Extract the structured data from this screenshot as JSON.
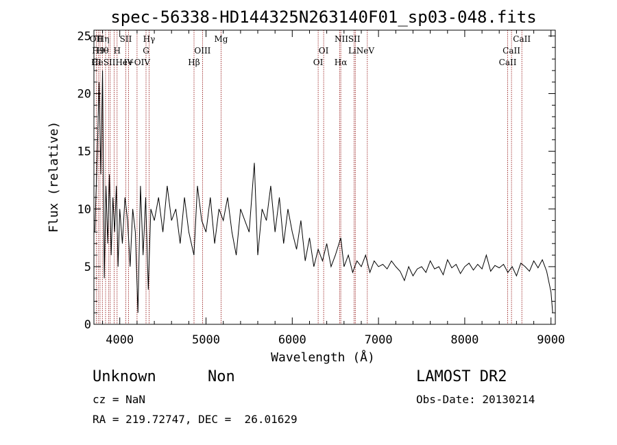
{
  "chart_data": {
    "type": "line",
    "title": "spec-56338-HD144325N263140F01_sp03-048.fits",
    "xlabel": "Wavelength (Å)",
    "ylabel": "Flux (relative)",
    "xlim": [
      3700,
      9050
    ],
    "ylim": [
      0,
      25.5
    ],
    "xticks": [
      4000,
      5000,
      6000,
      7000,
      8000,
      9000
    ],
    "yticks": [
      0,
      5,
      10,
      15,
      20,
      25
    ],
    "grid": false,
    "line_color": "#000000",
    "marker_color": "#8b0000",
    "series": [
      {
        "x": [
          3710,
          3740,
          3760,
          3780,
          3800,
          3820,
          3840,
          3860,
          3880,
          3900,
          3920,
          3940,
          3960,
          3980,
          4000,
          4030,
          4060,
          4090,
          4120,
          4150,
          4180,
          4210,
          4240,
          4270,
          4300,
          4330,
          4360,
          4400,
          4450,
          4500,
          4550,
          4600,
          4650,
          4700,
          4750,
          4800,
          4860,
          4900,
          4950,
          5000,
          5050,
          5100,
          5150,
          5200,
          5250,
          5300,
          5350,
          5400,
          5450,
          5500,
          5560,
          5600,
          5650,
          5700,
          5750,
          5800,
          5850,
          5900,
          5950,
          6000,
          6050,
          6100,
          6150,
          6200,
          6250,
          6300,
          6350,
          6400,
          6450,
          6500,
          6563,
          6600,
          6650,
          6700,
          6750,
          6800,
          6850,
          6900,
          6950,
          7000,
          7050,
          7100,
          7150,
          7200,
          7250,
          7300,
          7350,
          7400,
          7450,
          7500,
          7550,
          7600,
          7650,
          7700,
          7750,
          7800,
          7850,
          7900,
          7950,
          8000,
          8050,
          8100,
          8150,
          8200,
          8250,
          8300,
          8350,
          8400,
          8450,
          8500,
          8550,
          8600,
          8650,
          8700,
          8750,
          8800,
          8850,
          8900,
          8950,
          9000,
          9020
        ],
        "y": [
          8,
          15,
          21,
          13,
          22,
          4,
          12,
          7,
          13,
          6,
          11,
          8,
          12,
          5,
          10,
          7,
          11,
          9,
          5,
          10,
          8,
          1,
          12,
          6,
          11,
          3,
          10,
          9,
          11,
          8,
          12,
          9,
          10,
          7,
          11,
          8,
          6,
          12,
          9,
          8,
          11,
          7,
          10,
          9,
          11,
          8,
          6,
          10,
          9,
          8,
          14,
          6,
          10,
          9,
          12,
          8,
          11,
          7,
          10,
          8,
          6.5,
          9,
          5.5,
          7.5,
          5,
          6.5,
          5.5,
          7,
          5,
          6,
          7.5,
          5,
          6,
          4.5,
          5.5,
          5,
          6,
          4.5,
          5.5,
          5,
          5.2,
          4.8,
          5.5,
          5,
          4.6,
          3.8,
          5,
          4.2,
          4.8,
          5,
          4.5,
          5.5,
          4.8,
          5,
          4.3,
          5.6,
          4.9,
          5.2,
          4.4,
          5,
          5.3,
          4.7,
          5.2,
          4.8,
          6,
          4.6,
          5.1,
          4.9,
          5.2,
          4.5,
          5,
          4.2,
          5.3,
          5,
          4.6,
          5.5,
          4.9,
          5.6,
          4.6,
          2.8,
          1
        ]
      }
    ],
    "lines": [
      {
        "x": 3727,
        "labels": [
          "OII"
        ]
      },
      {
        "x": 3750,
        "labels": [
          "H9"
        ]
      },
      {
        "x": 3771,
        "labels": [
          "H8"
        ]
      },
      {
        "x": 3798,
        "labels": [
          "Hη"
        ]
      },
      {
        "x": 3835,
        "labels": [
          "Hθ"
        ]
      },
      {
        "x": 3869,
        "labels": [
          "HeI"
        ]
      },
      {
        "x": 3889,
        "labels": [
          "Hζ"
        ]
      },
      {
        "x": 3934,
        "labels": [
          "K"
        ]
      },
      {
        "x": 3969,
        "labels": [
          "H"
        ]
      },
      {
        "x": 4070,
        "labels": [
          "SII"
        ]
      },
      {
        "x": 4102,
        "labels": [
          "Hδ"
        ]
      },
      {
        "x": 4200,
        "labels": [
          "HeII"
        ]
      },
      {
        "x": 4304,
        "labels": [
          "G"
        ]
      },
      {
        "x": 4340,
        "labels": [
          "Hγ"
        ]
      },
      {
        "x": 4861,
        "labels": [
          "Hβ"
        ]
      },
      {
        "x": 4959,
        "labels": [
          "OIII"
        ]
      },
      {
        "x": 5175,
        "labels": [
          "Mg"
        ]
      },
      {
        "x": 6300,
        "labels": [
          "OI"
        ]
      },
      {
        "x": 6364,
        "labels": [
          "OI"
        ]
      },
      {
        "x": 6548,
        "labels": [
          "NII"
        ]
      },
      {
        "x": 6563,
        "labels": [
          "Hα"
        ]
      },
      {
        "x": 6716,
        "labels": [
          "SII"
        ]
      },
      {
        "x": 6731,
        "labels": [
          "Li"
        ]
      },
      {
        "x": 6870,
        "labels": [
          "NeV"
        ]
      },
      {
        "x": 8498,
        "labels": [
          "CaII"
        ]
      },
      {
        "x": 8542,
        "labels": [
          "CaII"
        ]
      },
      {
        "x": 8662,
        "labels": [
          "CaII"
        ]
      }
    ],
    "top_labels": [
      {
        "text": "OII",
        "x": 3727,
        "row": 0
      },
      {
        "text": "H9",
        "x": 3750,
        "row": 1
      },
      {
        "text": "CI",
        "x": 3730,
        "row": 2
      },
      {
        "text": "Hη",
        "x": 3808,
        "row": 0
      },
      {
        "text": "Hθ",
        "x": 3800,
        "row": 1
      },
      {
        "text": "HeSIIHe",
        "x": 3880,
        "row": 2
      },
      {
        "text": "SII",
        "x": 4070,
        "row": 0
      },
      {
        "text": "H",
        "x": 3969,
        "row": 1
      },
      {
        "text": "IV",
        "x": 4100,
        "row": 2
      },
      {
        "text": "Hγ",
        "x": 4340,
        "row": 0
      },
      {
        "text": "G",
        "x": 4304,
        "row": 1
      },
      {
        "text": "+OIV",
        "x": 4220,
        "row": 2
      },
      {
        "text": "OIII",
        "x": 4959,
        "row": 1
      },
      {
        "text": "Hβ",
        "x": 4861,
        "row": 2
      },
      {
        "text": "Mg",
        "x": 5175,
        "row": 0
      },
      {
        "text": "OI",
        "x": 6364,
        "row": 1
      },
      {
        "text": "OI",
        "x": 6300,
        "row": 2
      },
      {
        "text": "NIISII",
        "x": 6640,
        "row": 0
      },
      {
        "text": "Hα",
        "x": 6563,
        "row": 2
      },
      {
        "text": "LiNeV",
        "x": 6800,
        "row": 1
      },
      {
        "text": "CaII",
        "x": 8662,
        "row": 0
      },
      {
        "text": "CaII",
        "x": 8542,
        "row": 1
      },
      {
        "text": "CaII",
        "x": 8498,
        "row": 2
      }
    ]
  },
  "info": {
    "object_class": "Unknown",
    "subclass": "Non",
    "survey": "LAMOST DR2",
    "cz": "cz = NaN",
    "obs_date": "Obs-Date: 20130214",
    "coords": "RA = 219.72747, DEC =  26.01629"
  }
}
